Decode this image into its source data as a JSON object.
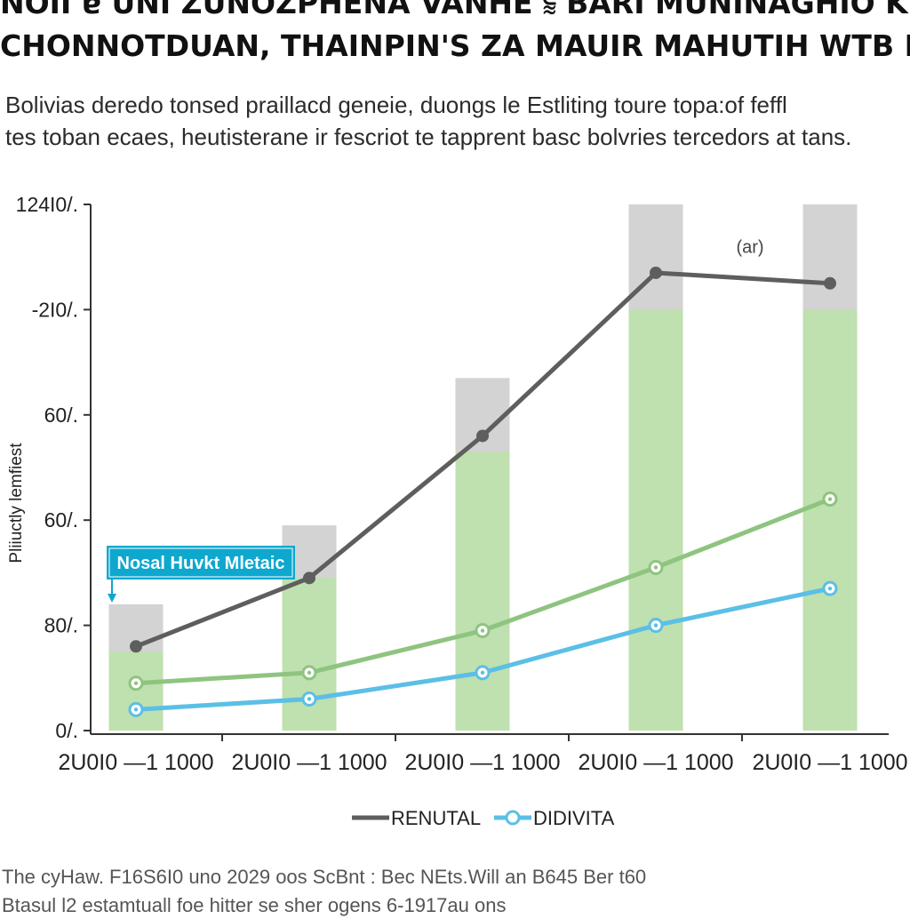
{
  "header": {
    "title_line1": "NOII ɐ UNI ZUNOZPHENA VANHE ⫉ BARI MUNINAGHIO KHIDKO,",
    "title_line2": "CHONNOTDUAN, THAINPIN'S ZA MAUIR MAHUTIH WTB NCHNOISIS, MONINKIET",
    "subtitle_line1": "Bolivias deredo tonsed praillacd geneie, duongs le Estliting toure topa:of feffl",
    "subtitle_line2": "tes toban ecaes, heutisterane ir fescriot te tapprent basc bolvries tercedors at tans."
  },
  "chart_data": {
    "type": "bar+line",
    "categories": [
      "2U0I0 —1 1000",
      "2U0I0 —1 1000",
      "2U0I0 —1 1000",
      "2U0I0 —1 1000",
      "2U0I0 —1 1000"
    ],
    "ylabel": "Pliiuctly lemfiest",
    "ylim": [
      0,
      100
    ],
    "y_ticks": [
      {
        "value": 0,
        "label": "0/."
      },
      {
        "value": 20,
        "label": "80/."
      },
      {
        "value": 40,
        "label": "60/."
      },
      {
        "value": 60,
        "label": "60/."
      },
      {
        "value": 80,
        "label": "-2I0/."
      },
      {
        "value": 100,
        "label": "124I0/."
      }
    ],
    "bars": {
      "total_values": [
        24,
        39,
        67,
        100,
        100
      ],
      "green_values": [
        15,
        29,
        53,
        80,
        80
      ],
      "total_color": "#d3d3d3",
      "green_color": "#bfe0af"
    },
    "series": [
      {
        "name": "RENUTAL",
        "values": [
          16,
          29,
          56,
          87,
          85
        ],
        "color": "#5e5e5e",
        "marker": "round",
        "in_legend": true
      },
      {
        "name": "",
        "values": [
          9,
          11,
          19,
          31,
          44
        ],
        "color": "#8ec47f",
        "marker": "ring",
        "in_legend": false
      },
      {
        "name": "DIDIVITA",
        "values": [
          4,
          6,
          11,
          20,
          27
        ],
        "color": "#5bbfe6",
        "marker": "ring",
        "in_legend": true
      }
    ],
    "annotations": [
      {
        "text": "(ar)",
        "anchor_category_index": 4,
        "value": 92
      },
      {
        "text": "Nosal Huvkt Mletaic",
        "type": "callout",
        "anchor_category_index": 0,
        "color": "#0ea8cf"
      }
    ]
  },
  "footer": {
    "line1": "The cyHaw. F16S6I0 uno 2029 oos ScBnt : Bec NEts.Will an B645 Ber t60",
    "line2": "Btasul l2 estamtuall foe hitter se sher ogens 6-1917au ons"
  }
}
